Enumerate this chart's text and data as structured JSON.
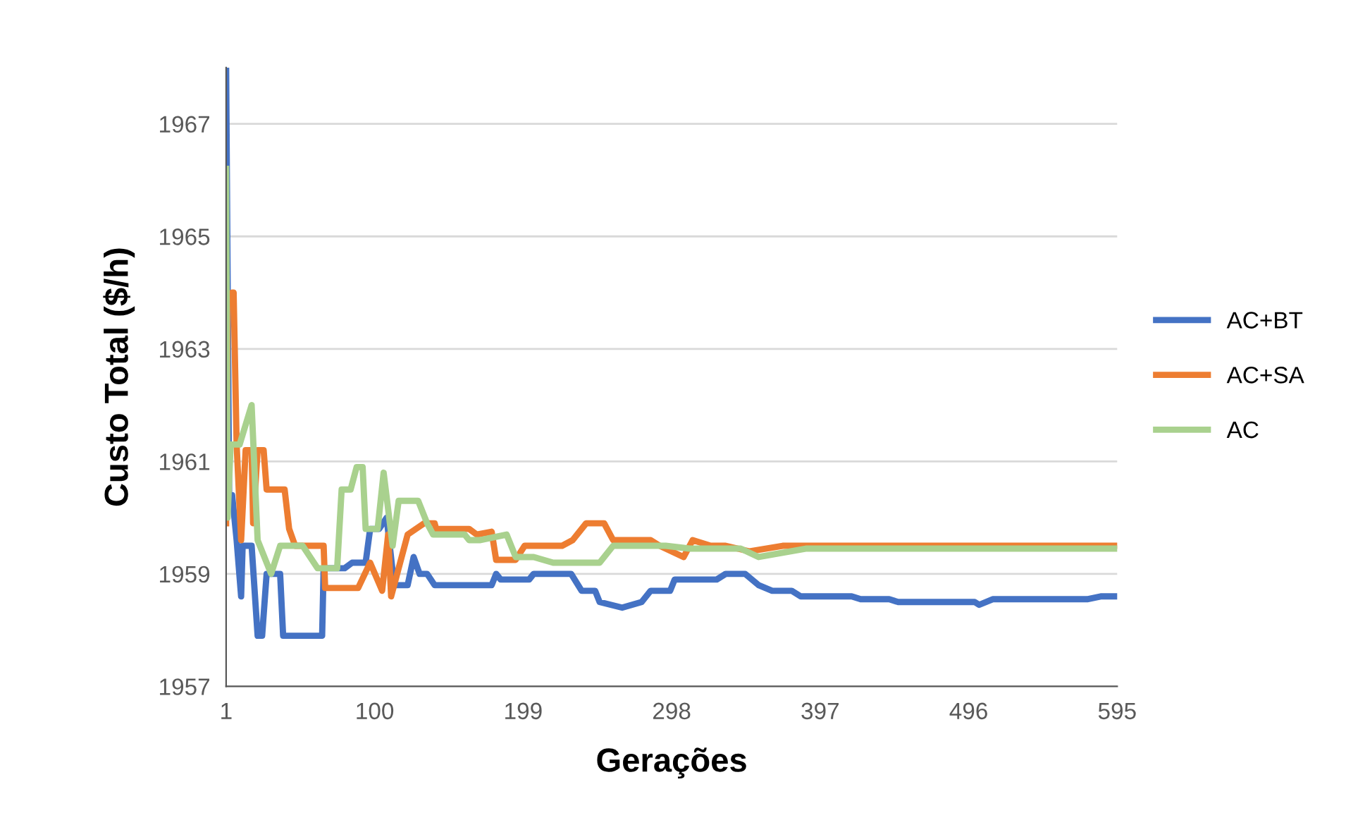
{
  "chart_data": {
    "type": "line",
    "xlabel": "Gerações",
    "ylabel": "Custo Total ($/h)",
    "xlim": [
      1,
      595
    ],
    "xticks": [
      1,
      100,
      199,
      298,
      397,
      496,
      595
    ],
    "ylim": [
      1957,
      1968
    ],
    "yticks": [
      1957,
      1959,
      1961,
      1963,
      1965,
      1967
    ],
    "grid": "y",
    "legend": "right",
    "line_style": "solid",
    "marker": "none",
    "series": [
      {
        "name": "AC+BT",
        "color": "#4472c4",
        "x": [
          1,
          3,
          5,
          8,
          11,
          12,
          18,
          22,
          25,
          28,
          30,
          37,
          39,
          65,
          66,
          80,
          85,
          94,
          97,
          103,
          108,
          113,
          122,
          126,
          130,
          135,
          140,
          163,
          178,
          181,
          184,
          203,
          206,
          231,
          238,
          247,
          250,
          265,
          278,
          284,
          297,
          300,
          328,
          334,
          347,
          356,
          365,
          378,
          384,
          418,
          424,
          443,
          449,
          500,
          503,
          512,
          575,
          584,
          595
        ],
        "values": [
          1968.0,
          1960.4,
          1960.4,
          1959.6,
          1958.6,
          1959.5,
          1959.5,
          1957.9,
          1957.9,
          1959.0,
          1959.0,
          1959.0,
          1957.9,
          1957.9,
          1959.1,
          1959.1,
          1959.2,
          1959.2,
          1959.8,
          1959.8,
          1960.0,
          1958.8,
          1958.8,
          1959.3,
          1959.0,
          1959.0,
          1958.8,
          1958.8,
          1958.8,
          1959.0,
          1958.9,
          1958.9,
          1959.0,
          1959.0,
          1958.7,
          1958.7,
          1958.5,
          1958.4,
          1958.5,
          1958.7,
          1958.7,
          1958.9,
          1958.9,
          1959.0,
          1959.0,
          1958.8,
          1958.7,
          1958.7,
          1958.6,
          1958.6,
          1958.55,
          1958.55,
          1958.5,
          1958.5,
          1958.45,
          1958.55,
          1958.55,
          1958.6,
          1958.6
        ]
      },
      {
        "name": "AC+SA",
        "color": "#ed7d31",
        "x": [
          1,
          2,
          5,
          6,
          8,
          11,
          14,
          18,
          19,
          22,
          26,
          28,
          40,
          43,
          47,
          66,
          67,
          89,
          97,
          105,
          109,
          111,
          122,
          133,
          140,
          141,
          163,
          168,
          178,
          181,
          194,
          200,
          225,
          232,
          241,
          253,
          259,
          284,
          290,
          306,
          312,
          324,
          334,
          350,
          372,
          595
        ],
        "values": [
          1959.9,
          1963.8,
          1964.0,
          1964.0,
          1961.3,
          1959.6,
          1961.2,
          1961.2,
          1959.9,
          1961.2,
          1961.2,
          1960.5,
          1960.5,
          1959.8,
          1959.5,
          1959.5,
          1958.75,
          1958.75,
          1959.2,
          1958.7,
          1959.7,
          1958.6,
          1959.7,
          1959.9,
          1959.9,
          1959.8,
          1959.8,
          1959.7,
          1959.75,
          1959.25,
          1959.25,
          1959.5,
          1959.5,
          1959.6,
          1959.9,
          1959.9,
          1959.6,
          1959.6,
          1959.5,
          1959.3,
          1959.6,
          1959.5,
          1959.5,
          1959.4,
          1959.5,
          1959.5
        ]
      },
      {
        "name": "AC",
        "color": "#a9d18e",
        "x": [
          1,
          2,
          4,
          10,
          18,
          22,
          31,
          37,
          52,
          62,
          75,
          78,
          84,
          88,
          92,
          94,
          102,
          106,
          112,
          116,
          129,
          135,
          139,
          160,
          163,
          170,
          188,
          194,
          206,
          219,
          250,
          259,
          294,
          310,
          344,
          356,
          388,
          595
        ],
        "values": [
          1966.2,
          1960.0,
          1961.3,
          1961.3,
          1962.0,
          1959.6,
          1959.0,
          1959.5,
          1959.5,
          1959.1,
          1959.1,
          1960.5,
          1960.5,
          1960.9,
          1960.9,
          1959.8,
          1959.8,
          1960.8,
          1959.5,
          1960.3,
          1960.3,
          1959.9,
          1959.7,
          1959.7,
          1959.6,
          1959.6,
          1959.7,
          1959.3,
          1959.3,
          1959.2,
          1959.2,
          1959.5,
          1959.5,
          1959.45,
          1959.45,
          1959.3,
          1959.45,
          1959.45
        ]
      }
    ]
  }
}
